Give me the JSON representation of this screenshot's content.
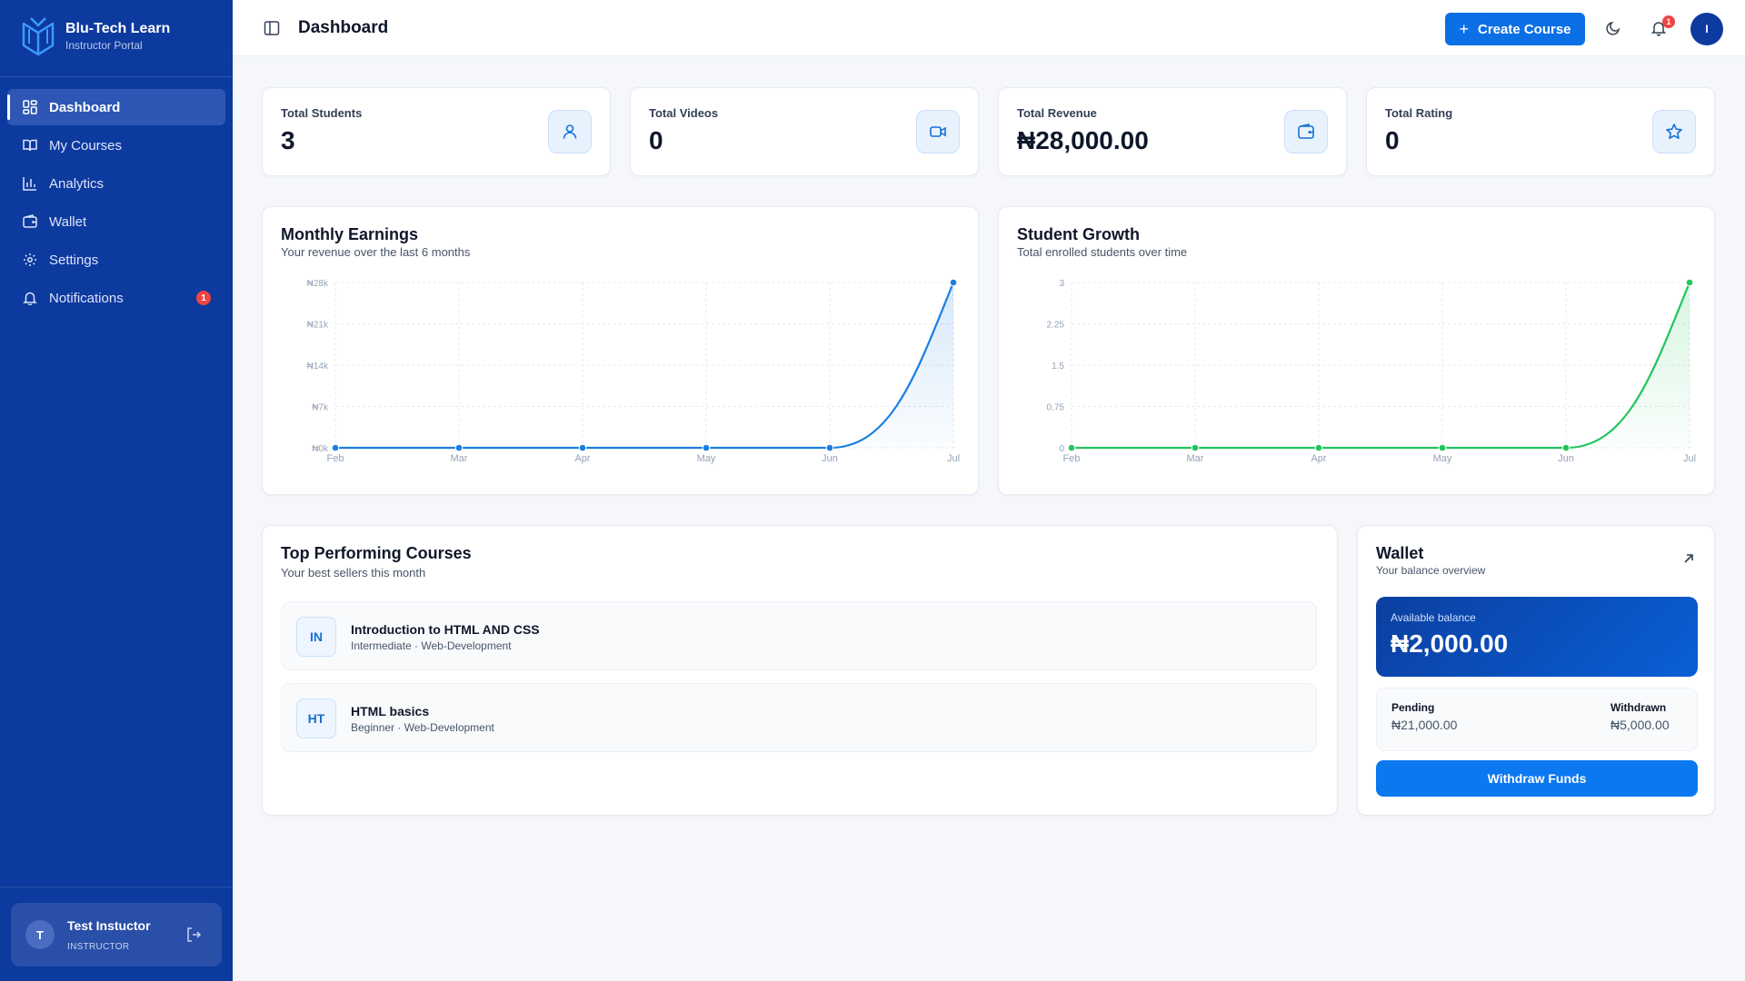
{
  "brand": {
    "name": "Blu-Tech Learn",
    "subtitle": "Instructor Portal"
  },
  "sidebar": {
    "items": [
      {
        "label": "Dashboard",
        "icon": "dashboard-icon",
        "active": true
      },
      {
        "label": "My Courses",
        "icon": "book-icon"
      },
      {
        "label": "Analytics",
        "icon": "bar-chart-icon"
      },
      {
        "label": "Wallet",
        "icon": "wallet-icon"
      },
      {
        "label": "Settings",
        "icon": "gear-icon"
      },
      {
        "label": "Notifications",
        "icon": "bell-icon",
        "badge": "1"
      }
    ],
    "user": {
      "initial": "T",
      "name": "Test Instuctor",
      "role": "INSTRUCTOR"
    }
  },
  "header": {
    "title": "Dashboard",
    "create_label": "Create Course",
    "notification_count": "1",
    "avatar_initial": "I"
  },
  "stats": [
    {
      "label": "Total Students",
      "value": "3",
      "icon": "user-icon"
    },
    {
      "label": "Total Videos",
      "value": "0",
      "icon": "video-icon"
    },
    {
      "label": "Total Revenue",
      "value": "₦28,000.00",
      "icon": "wallet-icon"
    },
    {
      "label": "Total Rating",
      "value": "0",
      "icon": "star-icon"
    }
  ],
  "earnings": {
    "title": "Monthly Earnings",
    "subtitle": "Your revenue over the last 6 months"
  },
  "growth": {
    "title": "Student Growth",
    "subtitle": "Total enrolled students over time"
  },
  "chart_data": [
    {
      "type": "area",
      "title": "Monthly Earnings",
      "categories": [
        "Feb",
        "Mar",
        "Apr",
        "May",
        "Jun",
        "Jul"
      ],
      "values": [
        0,
        0,
        0,
        0,
        0,
        28000
      ],
      "y_ticks": [
        "₦0k",
        "₦7k",
        "₦14k",
        "₦21k",
        "₦28k"
      ],
      "ylim": [
        0,
        28000
      ],
      "color": "#1a7fe0",
      "grid": true
    },
    {
      "type": "area",
      "title": "Student Growth",
      "categories": [
        "Feb",
        "Mar",
        "Apr",
        "May",
        "Jun",
        "Jul"
      ],
      "values": [
        0,
        0,
        0,
        0,
        0,
        3
      ],
      "y_ticks": [
        "0",
        "0.75",
        "1.5",
        "2.25",
        "3"
      ],
      "ylim": [
        0,
        3
      ],
      "color": "#22c55e",
      "grid": true
    }
  ],
  "courses": {
    "title": "Top Performing Courses",
    "subtitle": "Your best sellers this month",
    "items": [
      {
        "abbr": "IN",
        "name": "Introduction to HTML AND CSS",
        "meta": "Intermediate · Web-Development"
      },
      {
        "abbr": "HT",
        "name": "HTML basics",
        "meta": "Beginner · Web-Development"
      }
    ]
  },
  "wallet": {
    "title": "Wallet",
    "subtitle": "Your balance overview",
    "available_label": "Available balance",
    "available_value": "₦2,000.00",
    "pending_label": "Pending",
    "pending_value": "₦21,000.00",
    "withdrawn_label": "Withdrawn",
    "withdrawn_value": "₦5,000.00",
    "withdraw_label": "Withdraw Funds"
  },
  "colors": {
    "sidebar": "#0d3a9e",
    "primary": "#0b6fe6",
    "success": "#22c55e",
    "danger": "#ef4444"
  }
}
